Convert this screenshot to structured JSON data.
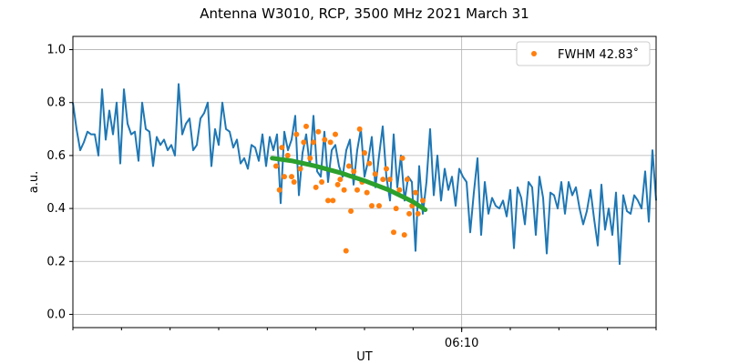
{
  "chart_data": {
    "type": "line",
    "title": "Antenna W3010, RCP, 3500 MHz 2021 March 31",
    "xlabel": "UT",
    "ylabel": "a.u.",
    "x_units": "minutes after 06:02 UT",
    "xlim": [
      0,
      12
    ],
    "ylim": [
      -0.05,
      1.05
    ],
    "yticks": [
      0.0,
      0.2,
      0.4,
      0.6,
      0.8,
      1.0
    ],
    "ytick_labels": [
      "0.0",
      "0.2",
      "0.4",
      "0.6",
      "0.8",
      "1.0"
    ],
    "xticks_minor": [
      0,
      1,
      2,
      3,
      4,
      5,
      6,
      7,
      8,
      9,
      10,
      11,
      12
    ],
    "xticks_major": [
      {
        "value": 8,
        "label": "06:10"
      }
    ],
    "grid": true,
    "legend": {
      "placement": "top-right",
      "entries": [
        "FWHM 42.83$^{\\circ}$"
      ],
      "label": "FWHM 42.83˚"
    },
    "series": [
      {
        "name": "signal",
        "color": "#1f77b4",
        "x_start": 0,
        "x_step": 0.075,
        "values": [
          0.8,
          0.7,
          0.62,
          0.65,
          0.69,
          0.68,
          0.68,
          0.6,
          0.85,
          0.66,
          0.77,
          0.68,
          0.8,
          0.57,
          0.85,
          0.72,
          0.68,
          0.69,
          0.58,
          0.8,
          0.7,
          0.69,
          0.56,
          0.67,
          0.64,
          0.66,
          0.62,
          0.64,
          0.6,
          0.87,
          0.68,
          0.72,
          0.74,
          0.62,
          0.64,
          0.74,
          0.76,
          0.8,
          0.56,
          0.7,
          0.64,
          0.8,
          0.7,
          0.69,
          0.63,
          0.66,
          0.57,
          0.59,
          0.55,
          0.64,
          0.63,
          0.58,
          0.68,
          0.56,
          0.67,
          0.62,
          0.68,
          0.42,
          0.69,
          0.62,
          0.66,
          0.75,
          0.45,
          0.61,
          0.68,
          0.56,
          0.75,
          0.54,
          0.52,
          0.69,
          0.5,
          0.62,
          0.64,
          0.56,
          0.52,
          0.62,
          0.66,
          0.49,
          0.62,
          0.7,
          0.52,
          0.58,
          0.67,
          0.48,
          0.6,
          0.71,
          0.52,
          0.43,
          0.68,
          0.48,
          0.6,
          0.43,
          0.52,
          0.5,
          0.24,
          0.56,
          0.38,
          0.5,
          0.7,
          0.45,
          0.6,
          0.43,
          0.55,
          0.47,
          0.52,
          0.41,
          0.55,
          0.52,
          0.5,
          0.31,
          0.46,
          0.59,
          0.3,
          0.5,
          0.38,
          0.44,
          0.41,
          0.4,
          0.43,
          0.37,
          0.47,
          0.25,
          0.48,
          0.44,
          0.34,
          0.5,
          0.48,
          0.3,
          0.52,
          0.44,
          0.23,
          0.46,
          0.45,
          0.4,
          0.5,
          0.38,
          0.5,
          0.45,
          0.48,
          0.4,
          0.34,
          0.39,
          0.47,
          0.36,
          0.26,
          0.49,
          0.32,
          0.4,
          0.3,
          0.46,
          0.19,
          0.45,
          0.39,
          0.38,
          0.45,
          0.43,
          0.4,
          0.54,
          0.35,
          0.62,
          0.43
        ]
      },
      {
        "name": "FWHM 42.83˚",
        "color": "#ff7f0e",
        "type": "scatter",
        "points": [
          [
            4.18,
            0.56
          ],
          [
            4.25,
            0.47
          ],
          [
            4.3,
            0.63
          ],
          [
            4.35,
            0.52
          ],
          [
            4.42,
            0.6
          ],
          [
            4.5,
            0.52
          ],
          [
            4.55,
            0.5
          ],
          [
            4.6,
            0.68
          ],
          [
            4.68,
            0.55
          ],
          [
            4.75,
            0.65
          ],
          [
            4.8,
            0.71
          ],
          [
            4.88,
            0.59
          ],
          [
            4.95,
            0.65
          ],
          [
            5.0,
            0.48
          ],
          [
            5.05,
            0.69
          ],
          [
            5.12,
            0.5
          ],
          [
            5.18,
            0.66
          ],
          [
            5.25,
            0.43
          ],
          [
            5.3,
            0.65
          ],
          [
            5.35,
            0.43
          ],
          [
            5.4,
            0.68
          ],
          [
            5.45,
            0.49
          ],
          [
            5.5,
            0.51
          ],
          [
            5.58,
            0.47
          ],
          [
            5.62,
            0.24
          ],
          [
            5.68,
            0.56
          ],
          [
            5.72,
            0.39
          ],
          [
            5.78,
            0.54
          ],
          [
            5.85,
            0.47
          ],
          [
            5.9,
            0.7
          ],
          [
            5.95,
            0.5
          ],
          [
            6.0,
            0.61
          ],
          [
            6.05,
            0.46
          ],
          [
            6.1,
            0.57
          ],
          [
            6.15,
            0.41
          ],
          [
            6.22,
            0.53
          ],
          [
            6.3,
            0.41
          ],
          [
            6.38,
            0.51
          ],
          [
            6.45,
            0.55
          ],
          [
            6.52,
            0.51
          ],
          [
            6.6,
            0.31
          ],
          [
            6.65,
            0.4
          ],
          [
            6.72,
            0.47
          ],
          [
            6.78,
            0.59
          ],
          [
            6.82,
            0.3
          ],
          [
            6.88,
            0.51
          ],
          [
            6.92,
            0.38
          ],
          [
            6.98,
            0.41
          ],
          [
            7.05,
            0.46
          ],
          [
            7.1,
            0.38
          ],
          [
            7.2,
            0.43
          ]
        ]
      },
      {
        "name": "fit",
        "color": "#2ca02c",
        "points": [
          [
            4.1,
            0.59
          ],
          [
            4.5,
            0.58
          ],
          [
            5.0,
            0.56
          ],
          [
            5.5,
            0.535
          ],
          [
            6.0,
            0.505
          ],
          [
            6.5,
            0.47
          ],
          [
            7.0,
            0.425
          ],
          [
            7.25,
            0.395
          ]
        ]
      }
    ]
  }
}
